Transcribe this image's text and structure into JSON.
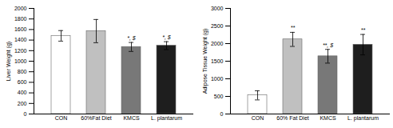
{
  "chart_data": [
    {
      "type": "bar",
      "ylabel": "Liver Weight (g)",
      "categories": [
        "CON",
        "60%Fat Diet",
        "KMCS",
        "L. plantarum"
      ],
      "values": [
        1480,
        1570,
        1270,
        1295
      ],
      "errors": [
        100,
        220,
        85,
        75
      ],
      "colors": [
        "#ffffff",
        "#c0c0c0",
        "#787878",
        "#1e1e1e"
      ],
      "annotations": [
        {
          "x": "KMCS",
          "text": "*, $"
        },
        {
          "x": "L. plantarum",
          "text": "*, $"
        }
      ],
      "ylim": [
        0,
        2000
      ],
      "yticks": [
        0,
        200,
        400,
        600,
        800,
        1000,
        1200,
        1400,
        1600,
        1800,
        2000
      ],
      "grid": false
    },
    {
      "type": "bar",
      "ylabel": "Adipose Tissue Weight (g)",
      "categories": [
        "CON",
        "60% Fat Diet",
        "KMCS",
        "L. plantarum"
      ],
      "values": [
        530,
        2120,
        1640,
        1970
      ],
      "errors": [
        130,
        200,
        195,
        290
      ],
      "colors": [
        "#ffffff",
        "#c0c0c0",
        "#787878",
        "#1e1e1e"
      ],
      "annotations": [
        {
          "x": "60% Fat Diet",
          "text": "**"
        },
        {
          "x": "KMCS",
          "text": "**, $"
        },
        {
          "x": "L. plantarum",
          "text": "**"
        }
      ],
      "ylim": [
        0,
        3000
      ],
      "yticks": [
        0,
        500,
        1000,
        1500,
        2000,
        2500,
        3000
      ],
      "grid": false
    }
  ]
}
